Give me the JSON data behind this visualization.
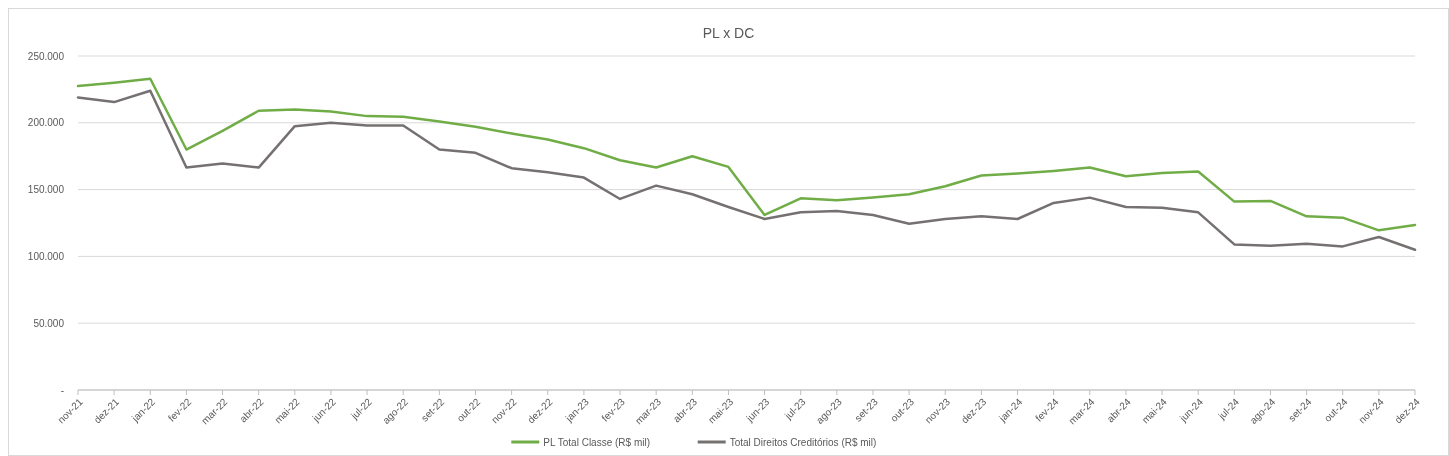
{
  "chart_data": {
    "type": "line",
    "title": "PL x DC",
    "categories": [
      "nov-21",
      "dez-21",
      "jan-22",
      "fev-22",
      "mar-22",
      "abr-22",
      "mai-22",
      "jun-22",
      "jul-22",
      "ago-22",
      "set-22",
      "out-22",
      "nov-22",
      "dez-22",
      "jan-23",
      "fev-23",
      "mar-23",
      "abr-23",
      "mai-23",
      "jun-23",
      "jul-23",
      "ago-23",
      "set-23",
      "out-23",
      "nov-23",
      "dez-23",
      "jan-24",
      "fev-24",
      "mar-24",
      "abr-24",
      "mai-24",
      "jun-24",
      "jul-24",
      "ago-24",
      "set-24",
      "out-24",
      "nov-24",
      "dez-24"
    ],
    "series": [
      {
        "name": "PL Total Classe (R$ mil)",
        "color": "#70ad47",
        "values": [
          227500,
          230000,
          233000,
          180000,
          194000,
          209000,
          210000,
          208500,
          205000,
          204500,
          201000,
          197000,
          192000,
          187500,
          181000,
          172000,
          166500,
          175000,
          167000,
          131000,
          143500,
          142000,
          144000,
          146500,
          152500,
          160500,
          162000,
          164000,
          166500,
          160000,
          162500,
          163500,
          141000,
          141500,
          130000,
          129000,
          119500,
          123500
        ]
      },
      {
        "name": "Total Direitos Creditórios (R$ mil)",
        "color": "#767171",
        "values": [
          219000,
          215500,
          224000,
          166500,
          169500,
          166500,
          197500,
          200000,
          198000,
          198000,
          180000,
          177500,
          166000,
          163000,
          159000,
          143000,
          153000,
          146500,
          137000,
          128000,
          133000,
          134000,
          131000,
          124500,
          128000,
          130000,
          128000,
          140000,
          144000,
          137000,
          136500,
          133000,
          109000,
          108000,
          109500,
          107500,
          114500,
          105000
        ]
      }
    ],
    "ylim": [
      0,
      250000
    ],
    "yticks": [
      {
        "value": 0,
        "label": "-"
      },
      {
        "value": 50000,
        "label": "50.000"
      },
      {
        "value": 100000,
        "label": "100.000"
      },
      {
        "value": 150000,
        "label": "150.000"
      },
      {
        "value": 200000,
        "label": "200.000"
      },
      {
        "value": 250000,
        "label": "250.000"
      }
    ],
    "grid": "y",
    "legend": "bottom"
  }
}
